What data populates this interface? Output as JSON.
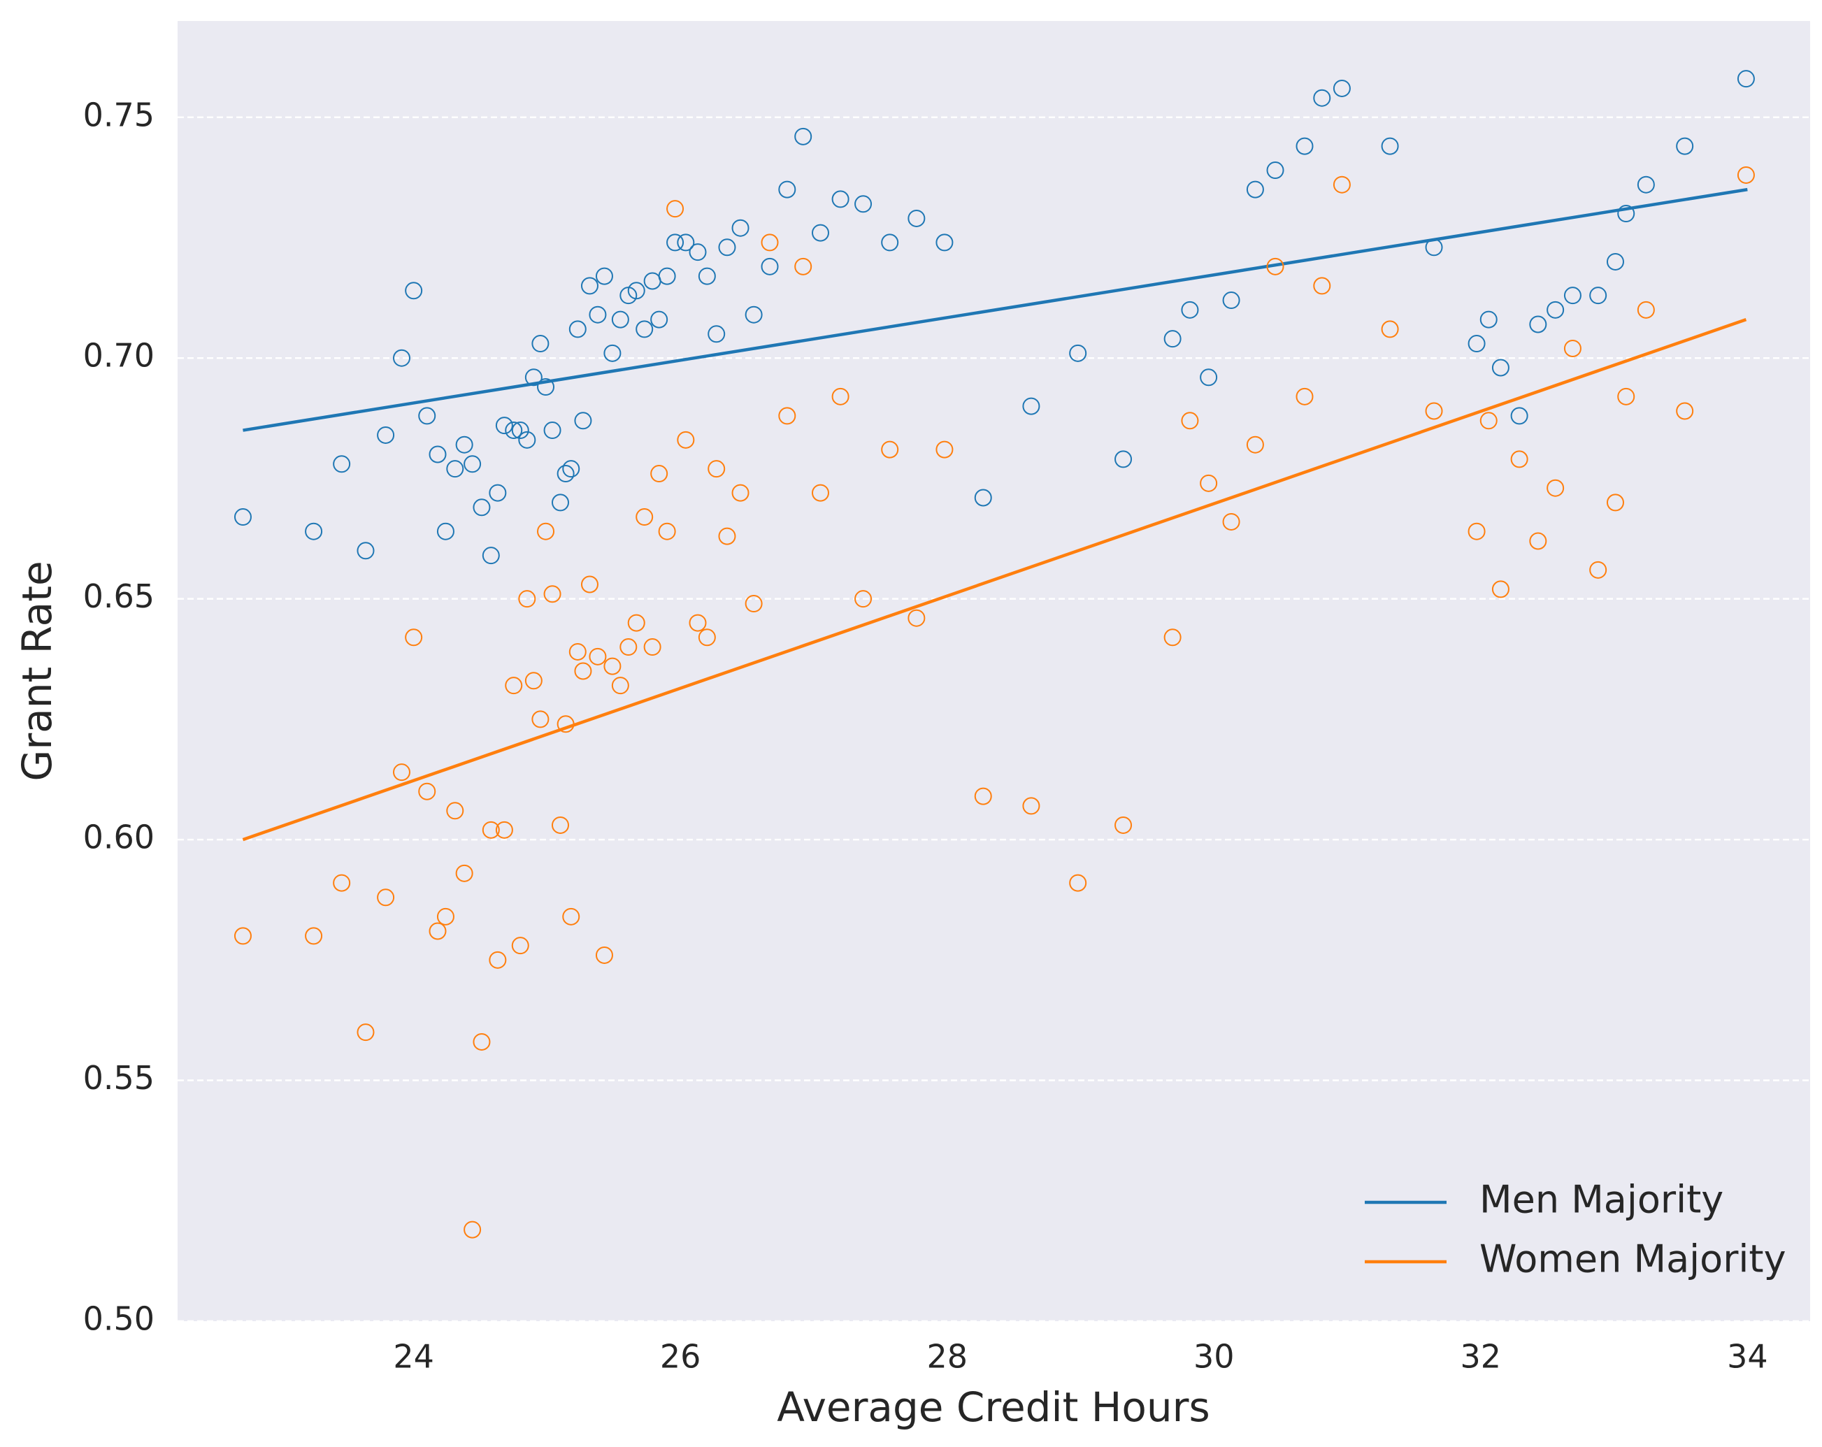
{
  "chart_data": {
    "type": "scatter",
    "x_label": "Average Credit Hours",
    "y_label": "Grant Rate",
    "xlim": [
      22.23,
      34.47
    ],
    "ylim": [
      0.5,
      0.77
    ],
    "xticks": [
      24,
      26,
      28,
      30,
      32,
      34
    ],
    "yticks": [
      {
        "value": 0.5,
        "label": "0.50"
      },
      0.55,
      {
        "value": 0.6,
        "label": "0.60"
      },
      0.65,
      {
        "value": 0.7,
        "label": "0.70"
      },
      0.75
    ],
    "grid": "y",
    "legend": "lower right",
    "background": "#eaeaf2",
    "x": [
      22.72,
      23.25,
      23.46,
      23.64,
      23.79,
      23.91,
      24.0,
      24.1,
      24.18,
      24.24,
      24.31,
      24.38,
      24.44,
      24.51,
      24.58,
      24.63,
      24.68,
      24.75,
      24.8,
      24.85,
      24.9,
      24.95,
      24.99,
      25.04,
      25.1,
      25.14,
      25.18,
      25.23,
      25.27,
      25.32,
      25.38,
      25.43,
      25.49,
      25.55,
      25.61,
      25.67,
      25.73,
      25.79,
      25.84,
      25.9,
      25.96,
      26.04,
      26.13,
      26.2,
      26.27,
      26.35,
      26.45,
      26.55,
      26.67,
      26.8,
      26.92,
      27.05,
      27.2,
      27.37,
      27.57,
      27.77,
      27.98,
      28.27,
      28.63,
      28.98,
      29.32,
      29.69,
      29.82,
      29.96,
      30.13,
      30.31,
      30.46,
      30.68,
      30.81,
      30.96,
      31.32,
      31.65,
      31.97,
      32.06,
      32.15,
      32.29,
      32.43,
      32.56,
      32.69,
      32.88,
      33.01,
      33.09,
      33.24,
      33.53,
      33.99
    ],
    "series": [
      {
        "name": "Men Majority",
        "color": "#1f77b4",
        "values": [
          0.667,
          0.664,
          0.678,
          0.66,
          0.684,
          0.7,
          0.714,
          0.688,
          0.68,
          0.664,
          0.677,
          0.682,
          0.678,
          0.669,
          0.659,
          0.672,
          0.686,
          0.685,
          0.685,
          0.683,
          0.696,
          0.703,
          0.694,
          0.685,
          0.67,
          0.676,
          0.677,
          0.706,
          0.687,
          0.715,
          0.709,
          0.717,
          0.701,
          0.708,
          0.713,
          0.714,
          0.706,
          0.716,
          0.708,
          0.717,
          0.724,
          0.724,
          0.722,
          0.717,
          0.705,
          0.723,
          0.727,
          0.709,
          0.719,
          0.735,
          0.746,
          0.726,
          0.733,
          0.732,
          0.724,
          0.729,
          0.724,
          0.671,
          0.69,
          0.701,
          0.679,
          0.704,
          0.71,
          0.696,
          0.712,
          0.735,
          0.739,
          0.744,
          0.754,
          0.756,
          0.744,
          0.723,
          0.703,
          0.708,
          0.698,
          0.688,
          0.707,
          0.71,
          0.713,
          0.713,
          0.72,
          0.73,
          0.736,
          0.744,
          0.758
        ],
        "fit": {
          "x": [
            22.72,
            34.0
          ],
          "values": [
            0.685,
            0.735
          ]
        }
      },
      {
        "name": "Women Majority",
        "color": "#ff7f0e",
        "values": [
          0.58,
          0.58,
          0.591,
          0.56,
          0.588,
          0.614,
          0.642,
          0.61,
          0.581,
          0.584,
          0.606,
          0.593,
          0.519,
          0.558,
          0.602,
          0.575,
          0.602,
          0.632,
          0.578,
          0.65,
          0.633,
          0.625,
          0.664,
          0.651,
          0.603,
          0.624,
          0.584,
          0.639,
          0.635,
          0.653,
          0.638,
          0.576,
          0.636,
          0.632,
          0.64,
          0.645,
          0.667,
          0.64,
          0.676,
          0.664,
          0.731,
          0.683,
          0.645,
          0.642,
          0.677,
          0.663,
          0.672,
          0.649,
          0.724,
          0.688,
          0.719,
          0.672,
          0.692,
          0.65,
          0.681,
          0.646,
          0.681,
          0.609,
          0.607,
          0.591,
          0.603,
          0.642,
          0.687,
          0.674,
          0.666,
          0.682,
          0.719,
          0.692,
          0.715,
          0.736,
          0.706,
          0.689,
          0.664,
          0.687,
          0.652,
          0.679,
          0.662,
          0.673,
          0.702,
          0.656,
          0.67,
          0.692,
          0.71,
          0.689,
          0.738
        ],
        "fit": {
          "x": [
            22.72,
            33.99
          ],
          "values": [
            0.6,
            0.708
          ]
        }
      }
    ]
  }
}
